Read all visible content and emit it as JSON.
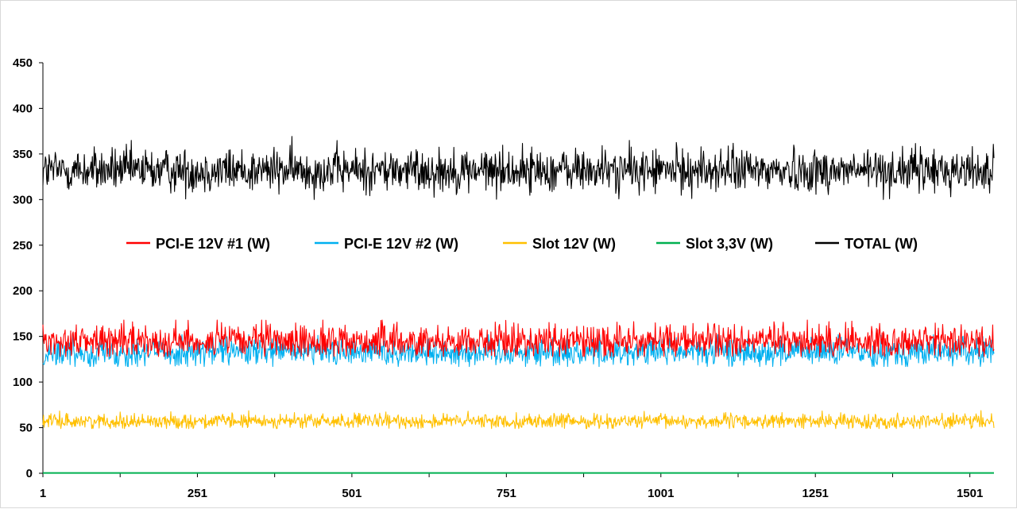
{
  "chart_data": {
    "type": "line",
    "title": "",
    "xlabel": "",
    "ylabel": "",
    "x_range": [
      1,
      1540
    ],
    "ylim": [
      0,
      450
    ],
    "y_ticks": [
      "0",
      "50",
      "100",
      "150",
      "200",
      "250",
      "300",
      "350",
      "400",
      "450"
    ],
    "x_ticks": [
      "1",
      "251",
      "501",
      "751",
      "1001",
      "1251",
      "1501"
    ],
    "grid": false,
    "legend_position": "center",
    "series": [
      {
        "name": "PCI-E 12V #1 (W)",
        "color": "#ff0000",
        "mean": 145,
        "amplitude": 9,
        "max": 168,
        "min": 128
      },
      {
        "name": "PCI-E 12V #2 (W)",
        "color": "#00b0f0",
        "mean": 133,
        "amplitude": 8,
        "max": 152,
        "min": 117
      },
      {
        "name": "Slot 12V (W)",
        "color": "#ffc000",
        "mean": 57,
        "amplitude": 4,
        "max": 70,
        "min": 49
      },
      {
        "name": "Slot 3,3V (W)",
        "color": "#00b050",
        "mean": 0.3,
        "amplitude": 0,
        "max": 0.3,
        "min": 0.3
      },
      {
        "name": "TOTAL (W)",
        "color": "#000000",
        "mean": 332,
        "amplitude": 12,
        "max": 370,
        "min": 296
      }
    ]
  }
}
